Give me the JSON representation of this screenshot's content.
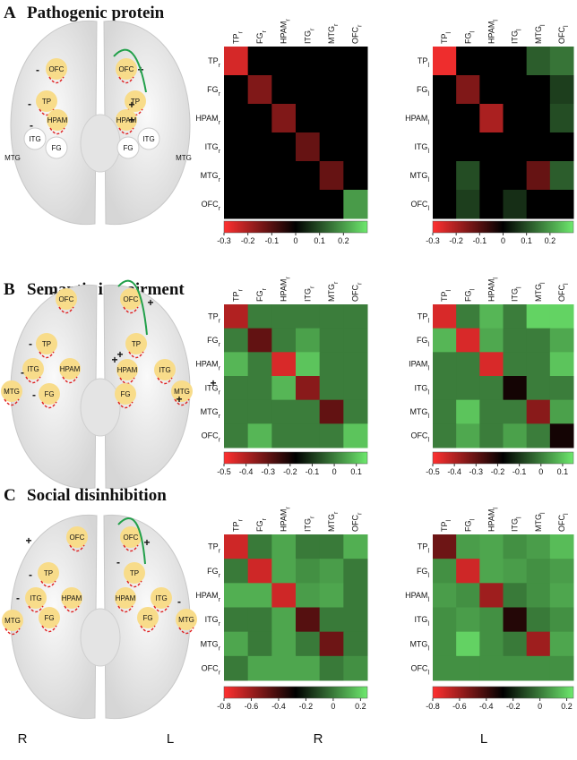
{
  "panels": [
    {
      "letter": "A",
      "title": "Pathogenic protein",
      "nodes": [
        "OFC",
        "OFC",
        "TP",
        "TP",
        "HPAM",
        "HPAM",
        "ITG",
        "ITG",
        "FG",
        "FG",
        "MTG",
        "MTG"
      ],
      "signs": [
        "-",
        "+",
        "-",
        "+",
        "-",
        "+"
      ]
    },
    {
      "letter": "B",
      "title": "Semantic impairment",
      "nodes": [
        "OFC",
        "OFC",
        "TP",
        "TP",
        "HPAM",
        "HPAM",
        "ITG",
        "ITG",
        "FG",
        "FG",
        "MTG",
        "MTG"
      ],
      "signs": [
        "-",
        "+",
        "-",
        "+",
        "-",
        "+",
        "-",
        "+",
        "+"
      ]
    },
    {
      "letter": "C",
      "title": "Social disinhibition",
      "nodes": [
        "OFC",
        "OFC",
        "TP",
        "TP",
        "HPAM",
        "HPAM",
        "ITG",
        "ITG",
        "FG",
        "FG",
        "MTG",
        "MTG"
      ],
      "signs": [
        "+",
        "+",
        "-",
        "-",
        "-",
        "-"
      ]
    }
  ],
  "footer_labels": [
    "R",
    "L",
    "R",
    "L"
  ],
  "chart_data": [
    {
      "type": "heatmap",
      "rows": [
        "TP",
        "FG",
        "HPAM",
        "ITG",
        "MTG",
        "OFC"
      ],
      "columns": [
        "TP",
        "FG",
        "HPAM",
        "ITG",
        "MTG",
        "OFC"
      ],
      "subscript": "r",
      "values": [
        [
          -0.25,
          0,
          0,
          0,
          0,
          0
        ],
        [
          0,
          -0.15,
          0,
          0,
          0,
          0
        ],
        [
          0,
          0,
          -0.15,
          0,
          0,
          0
        ],
        [
          0,
          0,
          0,
          -0.12,
          0,
          0
        ],
        [
          0,
          0,
          0,
          0,
          -0.12,
          0
        ],
        [
          0,
          0,
          0,
          0,
          0,
          0.2
        ]
      ],
      "clim": [
        -0.3,
        0.3
      ],
      "ticks": [
        -0.3,
        -0.2,
        -0.1,
        0,
        0.1,
        0.2
      ],
      "colormap": [
        "#ff3030",
        "#000000",
        "#6de86d"
      ]
    },
    {
      "type": "heatmap",
      "rows": [
        "TP",
        "FG",
        "HPAM",
        "ITG",
        "MTG",
        "OFC"
      ],
      "columns": [
        "TP",
        "FG",
        "HPAM",
        "ITG",
        "MTG",
        "OFC"
      ],
      "subscript": "l",
      "values": [
        [
          -0.28,
          0,
          0,
          0,
          0.12,
          0.15
        ],
        [
          0,
          -0.15,
          0,
          0,
          0,
          0.08
        ],
        [
          0,
          0,
          -0.2,
          0,
          0,
          0.1
        ],
        [
          0,
          0,
          0,
          0,
          0,
          0
        ],
        [
          0,
          0.1,
          0,
          0,
          -0.12,
          0.12
        ],
        [
          0,
          0.08,
          0,
          0.06,
          0,
          0
        ]
      ],
      "clim": [
        -0.3,
        0.3
      ],
      "ticks": [
        -0.3,
        -0.2,
        -0.1,
        0,
        0.1,
        0.2
      ],
      "colormap": [
        "#ff3030",
        "#000000",
        "#6de86d"
      ]
    },
    {
      "type": "heatmap",
      "rows": [
        "TP",
        "FG",
        "HPAM",
        "ITG",
        "MTG",
        "OFC"
      ],
      "columns": [
        "TP",
        "FG",
        "HPAM",
        "ITG",
        "MTG",
        "OFC"
      ],
      "subscript": "r",
      "values": [
        [
          -0.4,
          0,
          0,
          0,
          0,
          0
        ],
        [
          0,
          -0.3,
          0,
          0.05,
          0,
          0
        ],
        [
          0.08,
          0,
          -0.45,
          0.1,
          0,
          0
        ],
        [
          0,
          0,
          0.08,
          -0.35,
          0,
          0
        ],
        [
          0,
          0,
          0,
          0,
          -0.3,
          0
        ],
        [
          0,
          0.08,
          0,
          0,
          0,
          0.1
        ]
      ],
      "clim": [
        -0.5,
        0.15
      ],
      "ticks": [
        -0.5,
        -0.4,
        -0.3,
        -0.2,
        -0.1,
        0,
        0.1
      ],
      "colormap": [
        "#ff3030",
        "#000000",
        "#6de86d"
      ]
    },
    {
      "type": "heatmap",
      "rows": [
        "TP",
        "FG",
        "IPAM",
        "ITG",
        "MTG",
        "OFC"
      ],
      "columns": [
        "TP",
        "FG",
        "HPAM",
        "ITG",
        "MTG",
        "OFC"
      ],
      "subscript": "l",
      "values": [
        [
          -0.45,
          0,
          0.08,
          0,
          0.12,
          0.12
        ],
        [
          0.08,
          -0.45,
          0.06,
          0,
          0,
          0.06
        ],
        [
          0,
          0,
          -0.45,
          0,
          0,
          0.1
        ],
        [
          0,
          0,
          0,
          -0.2,
          0,
          0
        ],
        [
          0,
          0.1,
          0,
          0,
          -0.35,
          0.05
        ],
        [
          0,
          0.06,
          0,
          0.05,
          0,
          -0.2
        ]
      ],
      "clim": [
        -0.5,
        0.15
      ],
      "ticks": [
        -0.5,
        -0.4,
        -0.3,
        -0.2,
        -0.1,
        0,
        0.1
      ],
      "colormap": [
        "#ff3030",
        "#000000",
        "#6de86d"
      ]
    },
    {
      "type": "heatmap",
      "rows": [
        "TP",
        "FG",
        "HPAM",
        "ITG",
        "MTG",
        "OFC"
      ],
      "columns": [
        "TP",
        "FG",
        "HPAM",
        "ITG",
        "MTG",
        "OFC"
      ],
      "subscript": "r",
      "values": [
        [
          -0.7,
          0,
          0.1,
          0,
          0,
          0.12
        ],
        [
          0,
          -0.7,
          0.1,
          0.05,
          0.08,
          0
        ],
        [
          0.12,
          0.12,
          -0.7,
          0.08,
          0.1,
          0
        ],
        [
          0,
          0,
          0.1,
          -0.45,
          0,
          0
        ],
        [
          0.1,
          0,
          0.1,
          0,
          -0.5,
          0
        ],
        [
          0,
          0.1,
          0.1,
          0.1,
          0,
          0.05
        ]
      ],
      "clim": [
        -0.8,
        0.25
      ],
      "ticks": [
        -0.8,
        -0.6,
        -0.4,
        -0.2,
        0,
        0.2
      ],
      "colormap": [
        "#ff3030",
        "#000000",
        "#6de86d"
      ]
    },
    {
      "type": "heatmap",
      "rows": [
        "TP",
        "FG",
        "HPAM",
        "ITG",
        "MTG",
        "OFC"
      ],
      "columns": [
        "TP",
        "FG",
        "HPAM",
        "ITG",
        "MTG",
        "OFC"
      ],
      "subscript": "l",
      "values": [
        [
          -0.5,
          0.08,
          0.1,
          0.05,
          0.08,
          0.15
        ],
        [
          0.05,
          -0.7,
          0.1,
          0.08,
          0.05,
          0.08
        ],
        [
          0.08,
          0.05,
          -0.6,
          0,
          0.05,
          0.1
        ],
        [
          0.05,
          0.08,
          0.05,
          -0.35,
          0,
          0.05
        ],
        [
          0.05,
          0.2,
          0.05,
          0,
          -0.6,
          0.1
        ],
        [
          0.05,
          0.05,
          0.05,
          0.05,
          0.05,
          0.05
        ]
      ],
      "clim": [
        -0.8,
        0.25
      ],
      "ticks": [
        -0.8,
        -0.6,
        -0.4,
        -0.2,
        0,
        0.2
      ],
      "colormap": [
        "#ff3030",
        "#000000",
        "#6de86d"
      ]
    }
  ]
}
